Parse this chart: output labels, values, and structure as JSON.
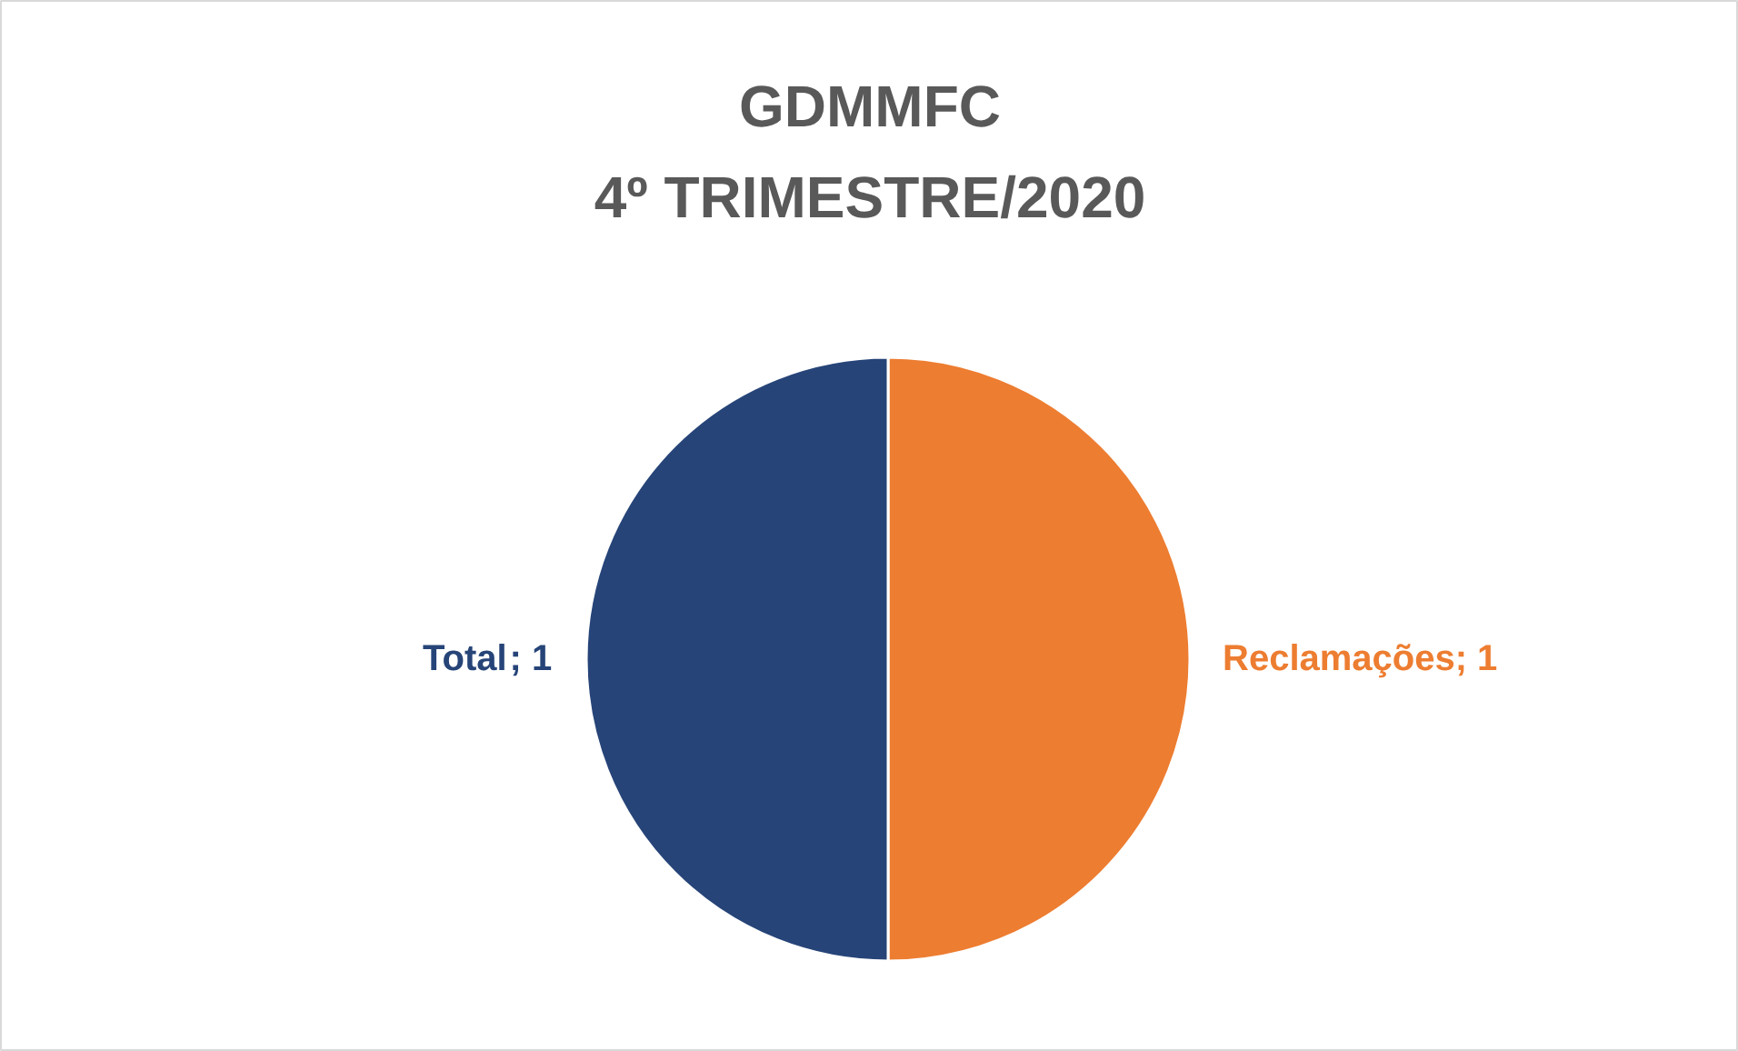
{
  "chart_data": {
    "type": "pie",
    "title": "GDMMFC\n4º TRIMESTRE/2020",
    "categories": [
      "Reclamações",
      "Total"
    ],
    "values": [
      1,
      1
    ],
    "value_labels": [
      "; 1",
      "; 1"
    ],
    "colors": [
      "#ed7d31",
      "#264478"
    ]
  }
}
